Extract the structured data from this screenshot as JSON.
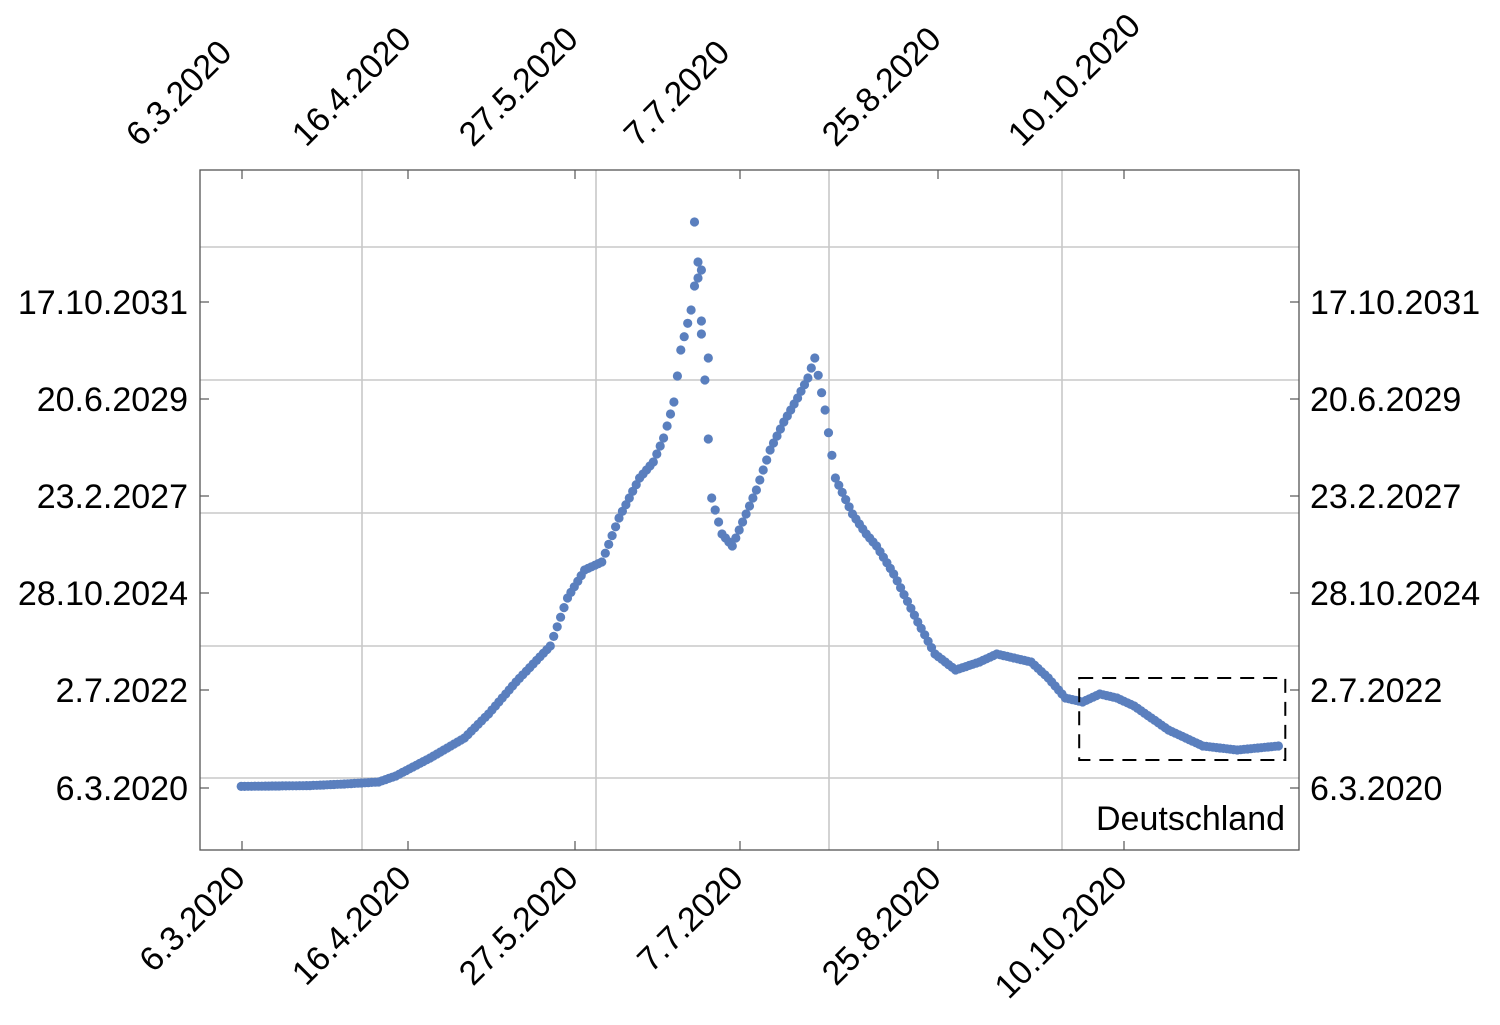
{
  "chart_data": {
    "type": "scatter",
    "title": "",
    "xlabel": "",
    "ylabel": "",
    "annotation": "Deutschland",
    "grid": true,
    "marker_color": "#5a7fbe",
    "x_ticks": [
      "6.3.2020",
      "16.4.2020",
      "27.5.2020",
      "7.7.2020",
      "25.8.2020",
      "10.10.2020"
    ],
    "y_ticks": [
      "6.3.2020",
      "2.7.2022",
      "28.10.2024",
      "23.2.2027",
      "20.6.2029",
      "17.10.2031"
    ],
    "series": [
      {
        "anchors": [
          [
            0,
            0.9
          ],
          [
            10,
            1.0
          ],
          [
            20,
            1.1
          ],
          [
            30,
            1.5
          ],
          [
            40,
            2.0
          ],
          [
            45,
            3.5
          ],
          [
            55,
            8
          ],
          [
            65,
            13
          ],
          [
            72,
            19
          ],
          [
            80,
            27
          ],
          [
            90,
            36
          ],
          [
            95,
            48
          ],
          [
            100,
            55
          ],
          [
            105,
            57
          ],
          [
            110,
            68
          ],
          [
            116,
            78
          ],
          [
            120,
            82
          ],
          [
            123,
            88
          ],
          [
            126,
            97
          ],
          [
            128,
            110
          ],
          [
            131,
            120
          ],
          [
            133,
            132
          ],
          [
            137,
            73
          ],
          [
            140,
            64
          ],
          [
            143,
            61
          ],
          [
            146,
            67
          ],
          [
            150,
            75
          ],
          [
            154,
            85
          ],
          [
            158,
            92
          ],
          [
            162,
            98
          ],
          [
            165,
            103
          ],
          [
            167,
            108
          ],
          [
            170,
            95
          ],
          [
            173,
            78
          ],
          [
            178,
            69
          ],
          [
            182,
            64
          ],
          [
            185,
            61
          ],
          [
            190,
            54
          ],
          [
            197,
            42
          ],
          [
            202,
            34
          ],
          [
            208,
            30
          ],
          [
            215,
            32
          ],
          [
            220,
            34
          ],
          [
            230,
            32
          ],
          [
            235,
            28
          ],
          [
            240,
            23
          ],
          [
            245,
            22
          ],
          [
            250,
            24
          ],
          [
            255,
            23
          ],
          [
            260,
            21
          ],
          [
            270,
            15
          ],
          [
            280,
            11
          ],
          [
            290,
            10
          ],
          [
            302,
            11
          ]
        ],
        "outliers": [
          [
            132,
            142
          ],
          [
            133,
            128
          ],
          [
            134,
            130
          ],
          [
            136,
            108
          ],
          [
            134,
            114
          ]
        ]
      }
    ],
    "zoom_box": {
      "x_start": 244,
      "x_end": 304,
      "y_low": 7.5,
      "y_high": 28
    },
    "xlim": [
      -12,
      308
    ],
    "ylim": [
      -15,
      155
    ]
  }
}
